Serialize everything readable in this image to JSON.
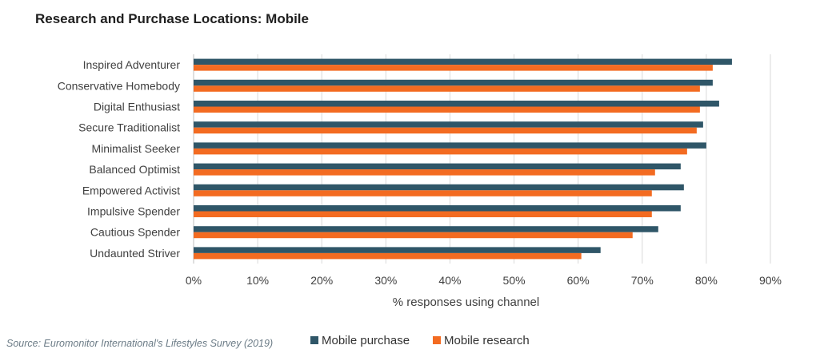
{
  "chart_data": {
    "type": "bar",
    "orientation": "horizontal",
    "title": "Research and Purchase Locations: Mobile",
    "xlabel": "% responses using channel",
    "ylabel": "",
    "xlim": [
      0,
      90
    ],
    "xticks": [
      "0%",
      "10%",
      "20%",
      "30%",
      "40%",
      "50%",
      "60%",
      "70%",
      "80%",
      "90%"
    ],
    "grid": true,
    "legend": "bottom",
    "categories": [
      "Inspired Adventurer",
      "Conservative Homebody",
      "Digital Enthusiast",
      "Secure Traditionalist",
      "Minimalist Seeker",
      "Balanced Optimist",
      "Empowered Activist",
      "Impulsive Spender",
      "Cautious Spender",
      "Undaunted Striver"
    ],
    "series": [
      {
        "name": "Mobile purchase",
        "color": "#2f5668",
        "values": [
          84,
          81,
          82,
          79.5,
          80,
          76,
          76.5,
          76,
          72.5,
          63.5
        ]
      },
      {
        "name": "Mobile research",
        "color": "#f36b21",
        "values": [
          81,
          79,
          79,
          78.5,
          77,
          72,
          71.5,
          71.5,
          68.5,
          60.5
        ]
      }
    ]
  },
  "source": "Source: Euromonitor International's Lifestyles Survey (2019)"
}
